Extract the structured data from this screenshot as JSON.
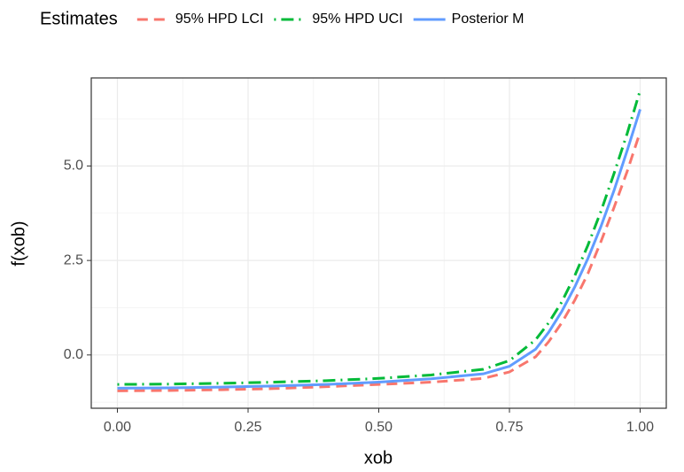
{
  "chart_data": {
    "type": "line",
    "legend_title": "Estimates",
    "legend_position": "top",
    "xlabel": "xob",
    "ylabel": "f(xob)",
    "x": [
      0,
      0.1,
      0.2,
      0.3,
      0.4,
      0.5,
      0.6,
      0.7,
      0.75,
      0.8,
      0.825,
      0.85,
      0.875,
      0.9,
      0.925,
      0.95,
      0.975,
      1.0
    ],
    "series": [
      {
        "name": "95% HPD LCI",
        "color": "#F8766D",
        "linetype": "dashed",
        "values": [
          -0.95,
          -0.94,
          -0.92,
          -0.89,
          -0.84,
          -0.78,
          -0.72,
          -0.62,
          -0.45,
          -0.05,
          0.35,
          0.85,
          1.45,
          2.15,
          3.0,
          3.9,
          4.85,
          5.9
        ]
      },
      {
        "name": "95% HPD UCI",
        "color": "#00BA38",
        "linetype": "dotdash",
        "values": [
          -0.78,
          -0.77,
          -0.75,
          -0.72,
          -0.68,
          -0.62,
          -0.53,
          -0.38,
          -0.15,
          0.4,
          0.85,
          1.4,
          2.1,
          2.9,
          3.8,
          4.8,
          5.85,
          7.0
        ]
      },
      {
        "name": "Posterior M",
        "color": "#619CFF",
        "linetype": "solid",
        "values": [
          -0.88,
          -0.87,
          -0.85,
          -0.82,
          -0.78,
          -0.72,
          -0.63,
          -0.5,
          -0.3,
          0.15,
          0.6,
          1.15,
          1.8,
          2.55,
          3.4,
          4.35,
          5.4,
          6.5
        ]
      }
    ],
    "xlim": [
      -0.05,
      1.05
    ],
    "xticks": [
      {
        "value": 0,
        "label": "0.00"
      },
      {
        "value": 0.25,
        "label": "0.25"
      },
      {
        "value": 0.5,
        "label": "0.50"
      },
      {
        "value": 0.75,
        "label": "0.75"
      },
      {
        "value": 1,
        "label": "1.00"
      }
    ],
    "ylim": [
      -1.41,
      7.33
    ],
    "yticks": [
      {
        "value": 0,
        "label": "0.0"
      },
      {
        "value": 2.5,
        "label": "2.5"
      },
      {
        "value": 5,
        "label": "5.0"
      }
    ],
    "grid": true
  }
}
